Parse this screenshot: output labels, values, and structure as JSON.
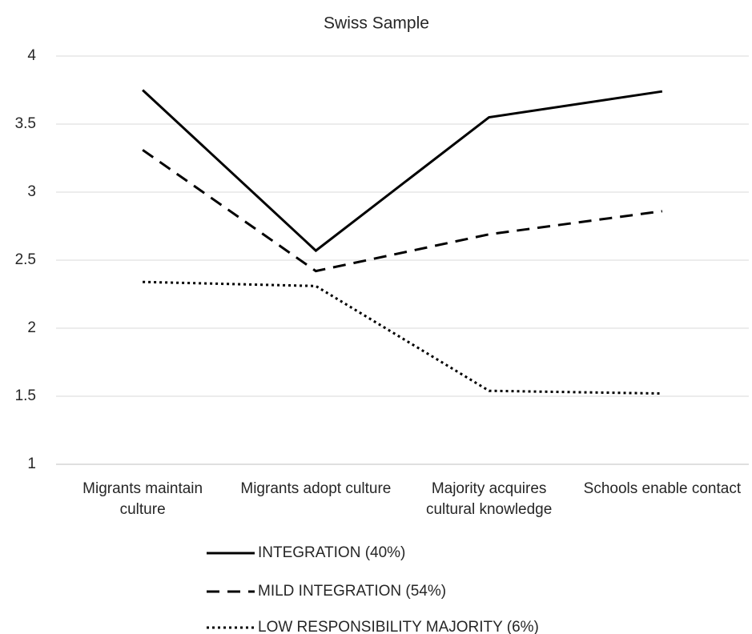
{
  "chart_data": {
    "type": "line",
    "title": "Swiss Sample",
    "categories": [
      "Migrants maintain culture",
      "Migrants adopt culture",
      "Majority acquires cultural knowledge",
      "Schools enable contact"
    ],
    "series": [
      {
        "name": "INTEGRATION (40%)",
        "color": "#000000",
        "dash": "solid",
        "values": [
          3.75,
          2.57,
          3.55,
          3.74
        ]
      },
      {
        "name": "MILD INTEGRATION (54%)",
        "color": "#000000",
        "dash": "dashed",
        "values": [
          3.31,
          2.42,
          2.69,
          2.86
        ]
      },
      {
        "name": "LOW RESPONSIBILITY MAJORITY (6%)",
        "color": "#000000",
        "dash": "dotted",
        "values": [
          2.34,
          2.31,
          1.54,
          1.52
        ]
      }
    ],
    "ylim": [
      1,
      4
    ],
    "yticks": [
      1,
      1.5,
      2,
      2.5,
      3,
      3.5,
      4
    ],
    "grid": true,
    "legend": "bottom"
  }
}
